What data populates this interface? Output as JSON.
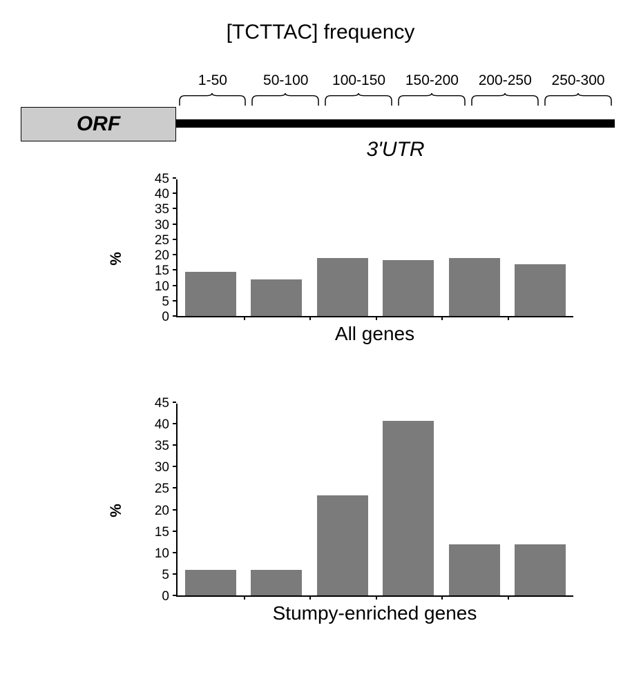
{
  "title": "[TCTTAC] frequency",
  "bins": [
    "1-50",
    "50-100",
    "100-150",
    "150-200",
    "200-250",
    "250-300"
  ],
  "orf_label": "ORF",
  "utr_label": "3'UTR",
  "colors": {
    "background": "#ffffff",
    "text": "#000000",
    "orf_fill": "#cccccc",
    "orf_border": "#000000",
    "utr_line": "#000000",
    "bar_fill": "#7b7b7b",
    "axis": "#000000",
    "bracket": "#000000"
  },
  "typography": {
    "title_fontsize": 30,
    "bin_label_fontsize": 21,
    "orf_fontsize": 30,
    "utr_fontsize": 30,
    "ytick_fontsize": 19,
    "ylabel_fontsize": 22,
    "chart_title_fontsize": 28,
    "orf_style": "italic bold",
    "utr_style": "italic"
  },
  "chart_all": {
    "type": "bar",
    "title": "All genes",
    "ylabel": "%",
    "ylim": [
      0,
      45
    ],
    "ytick_step": 5,
    "yticks": [
      0,
      5,
      10,
      15,
      20,
      25,
      30,
      35,
      40,
      45
    ],
    "values": [
      14.5,
      12,
      19,
      18.5,
      19,
      17
    ],
    "bar_color": "#7b7b7b",
    "bar_width": 0.78
  },
  "chart_stumpy": {
    "type": "bar",
    "title": "Stumpy-enriched genes",
    "ylabel": "%",
    "ylim": [
      0,
      45
    ],
    "ytick_step": 5,
    "yticks": [
      0,
      5,
      10,
      15,
      20,
      25,
      30,
      35,
      40,
      45
    ],
    "values": [
      6,
      6,
      23.5,
      41,
      12,
      12
    ],
    "bar_color": "#7b7b7b",
    "bar_width": 0.78
  }
}
